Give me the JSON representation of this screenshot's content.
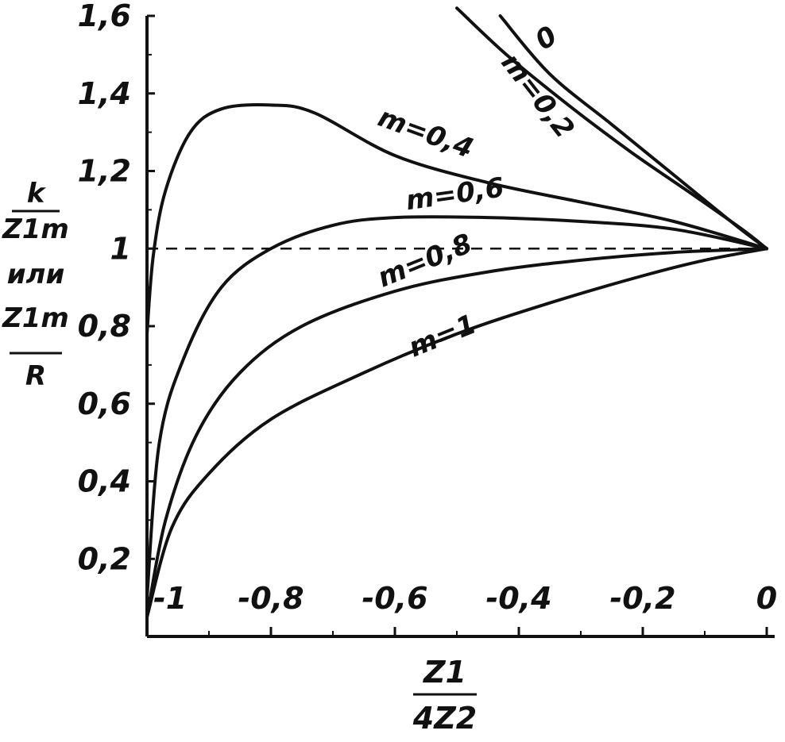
{
  "chart_data": {
    "type": "line",
    "ylabel": {
      "numerator": "k",
      "denominator": "Z1m",
      "connector": "или",
      "numerator2": "Z1m",
      "denominator2": "R"
    },
    "xlabel": {
      "numerator": "Z1",
      "denominator": "4Z2"
    },
    "xlim": [
      -1,
      0
    ],
    "ylim": [
      0,
      1.6
    ],
    "x_ticks": [
      -1,
      -0.8,
      -0.6,
      -0.4,
      -0.2,
      0
    ],
    "x_tick_labels": [
      "-1",
      "-0,8",
      "-0,6",
      "-0,4",
      "-0,2",
      "0"
    ],
    "y_ticks": [
      0.2,
      0.4,
      0.6,
      0.8,
      1,
      1.2,
      1.4,
      1.6
    ],
    "y_tick_labels": [
      "0,2",
      "0,4",
      "0,6",
      "0,8",
      "1",
      "1,2",
      "1,4",
      "1,6"
    ],
    "reference_line": {
      "y": 1,
      "style": "dashed"
    },
    "grid": false,
    "series": [
      {
        "name": "0",
        "x": [
          -0.43,
          -0.35,
          -0.25,
          -0.15,
          -0.05,
          0
        ],
        "y": [
          1.6,
          1.45,
          1.32,
          1.19,
          1.06,
          1.0
        ]
      },
      {
        "name": "m=0,2",
        "x": [
          -0.5,
          -0.42,
          -0.32,
          -0.22,
          -0.12,
          -0.04,
          0
        ],
        "y": [
          1.62,
          1.5,
          1.37,
          1.25,
          1.14,
          1.05,
          1.0
        ]
      },
      {
        "name": "m=0,4",
        "x": [
          -1,
          -0.99,
          -0.97,
          -0.93,
          -0.88,
          -0.8,
          -0.73,
          -0.6,
          -0.45,
          -0.3,
          -0.15,
          0
        ],
        "y": [
          0.78,
          0.98,
          1.15,
          1.3,
          1.36,
          1.37,
          1.35,
          1.24,
          1.17,
          1.12,
          1.07,
          1.0
        ]
      },
      {
        "name": "m=0,6",
        "x": [
          -1,
          -0.98,
          -0.94,
          -0.88,
          -0.8,
          -0.7,
          -0.6,
          -0.45,
          -0.3,
          -0.15,
          0
        ],
        "y": [
          0.1,
          0.5,
          0.72,
          0.9,
          1.0,
          1.06,
          1.08,
          1.08,
          1.07,
          1.05,
          1.0
        ]
      },
      {
        "name": "m=0,8",
        "x": [
          -1,
          -0.97,
          -0.92,
          -0.85,
          -0.75,
          -0.6,
          -0.45,
          -0.3,
          -0.15,
          0
        ],
        "y": [
          0.05,
          0.3,
          0.52,
          0.68,
          0.8,
          0.89,
          0.94,
          0.97,
          0.99,
          1.0
        ]
      },
      {
        "name": "m=1",
        "x": [
          -1,
          -0.96,
          -0.9,
          -0.8,
          -0.65,
          -0.5,
          -0.35,
          -0.2,
          -0.1,
          0
        ],
        "y": [
          0.05,
          0.28,
          0.42,
          0.56,
          0.68,
          0.78,
          0.86,
          0.93,
          0.97,
          1.0
        ]
      }
    ],
    "series_labels": [
      {
        "text": "0",
        "x": -0.36,
        "y": 1.51,
        "angle": -35
      },
      {
        "text": "m=0,2",
        "x": -0.43,
        "y": 1.48,
        "angle": 52
      },
      {
        "text": "m=0,4",
        "x": -0.63,
        "y": 1.32,
        "angle": 20
      },
      {
        "text": "m=0,6",
        "x": -0.58,
        "y": 1.1,
        "angle": -8
      },
      {
        "text": "m=0,8",
        "x": -0.62,
        "y": 0.9,
        "angle": -22
      },
      {
        "text": "m=1",
        "x": -0.57,
        "y": 0.72,
        "angle": -22
      }
    ]
  }
}
